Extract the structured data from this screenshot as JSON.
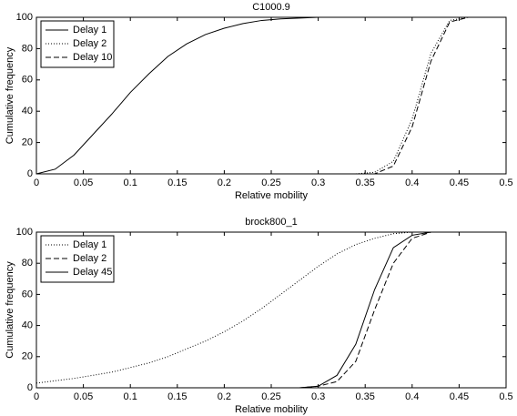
{
  "chart_data": [
    {
      "type": "line",
      "title": "C1000.9",
      "xlabel": "Relative mobility",
      "ylabel": "Cumulative frequency",
      "x": [
        0,
        0.02,
        0.04,
        0.06,
        0.08,
        0.1,
        0.12,
        0.14,
        0.16,
        0.18,
        0.2,
        0.22,
        0.24,
        0.26,
        0.28,
        0.3,
        0.32,
        0.34,
        0.36,
        0.38,
        0.4,
        0.42,
        0.44,
        0.46,
        0.48,
        0.5
      ],
      "series": [
        {
          "name": "Delay 1",
          "color": "#000000",
          "dash": "solid",
          "values": [
            0,
            3,
            12,
            25,
            38,
            52,
            64,
            75,
            83,
            89,
            93,
            96,
            98,
            99,
            99.5,
            100,
            100,
            100,
            100,
            100,
            100,
            100,
            100,
            100,
            100,
            100
          ]
        },
        {
          "name": "Delay 2",
          "color": "#000000",
          "dash": "dotted",
          "values": [
            0,
            0,
            0,
            0,
            0,
            0,
            0,
            0,
            0,
            0,
            0,
            0,
            0,
            0,
            0,
            0,
            0,
            0,
            1,
            8,
            35,
            77,
            98,
            100,
            100,
            100
          ]
        },
        {
          "name": "Delay 10",
          "color": "#000000",
          "dash": "dashed",
          "values": [
            0,
            0,
            0,
            0,
            0,
            0,
            0,
            0,
            0,
            0,
            0,
            0,
            0,
            0,
            0,
            0,
            0,
            0,
            0,
            5,
            30,
            72,
            97,
            100,
            100,
            100
          ]
        }
      ],
      "xlim": [
        0,
        0.5
      ],
      "ylim": [
        0,
        100
      ],
      "xticks": [
        0,
        0.05,
        0.1,
        0.15,
        0.2,
        0.25,
        0.3,
        0.35,
        0.4,
        0.45,
        0.5
      ],
      "yticks": [
        0,
        20,
        40,
        60,
        80,
        100
      ],
      "legend": "upper left"
    },
    {
      "type": "line",
      "title": "brock800_1",
      "xlabel": "Relative mobility",
      "ylabel": "Cumulative frequency",
      "x": [
        0,
        0.02,
        0.04,
        0.06,
        0.08,
        0.1,
        0.12,
        0.14,
        0.16,
        0.18,
        0.2,
        0.22,
        0.24,
        0.26,
        0.28,
        0.3,
        0.32,
        0.34,
        0.36,
        0.38,
        0.4,
        0.42,
        0.44,
        0.46,
        0.48,
        0.5
      ],
      "series": [
        {
          "name": "Delay 1",
          "color": "#000000",
          "dash": "dotted",
          "values": [
            3,
            4.5,
            6,
            8,
            10,
            13,
            16,
            20,
            25,
            30,
            36,
            43,
            51,
            60,
            69,
            78,
            86,
            92,
            96,
            99,
            100,
            100,
            100,
            100,
            100,
            100
          ]
        },
        {
          "name": "Delay 2",
          "color": "#000000",
          "dash": "dashed",
          "values": [
            0,
            0,
            0,
            0,
            0,
            0,
            0,
            0,
            0,
            0,
            0,
            0,
            0,
            0,
            0,
            1,
            4,
            17,
            50,
            80,
            96,
            100,
            100,
            100,
            100,
            100
          ]
        },
        {
          "name": "Delay 45",
          "color": "#000000",
          "dash": "solid",
          "values": [
            0,
            0,
            0,
            0,
            0,
            0,
            0,
            0,
            0,
            0,
            0,
            0,
            0,
            0,
            0,
            1,
            8,
            28,
            63,
            90,
            98,
            100,
            100,
            100,
            100,
            100
          ]
        }
      ],
      "xlim": [
        0,
        0.5
      ],
      "ylim": [
        0,
        100
      ],
      "xticks": [
        0,
        0.05,
        0.1,
        0.15,
        0.2,
        0.25,
        0.3,
        0.35,
        0.4,
        0.45,
        0.5
      ],
      "yticks": [
        0,
        20,
        40,
        60,
        80,
        100
      ],
      "legend": "upper left"
    }
  ]
}
